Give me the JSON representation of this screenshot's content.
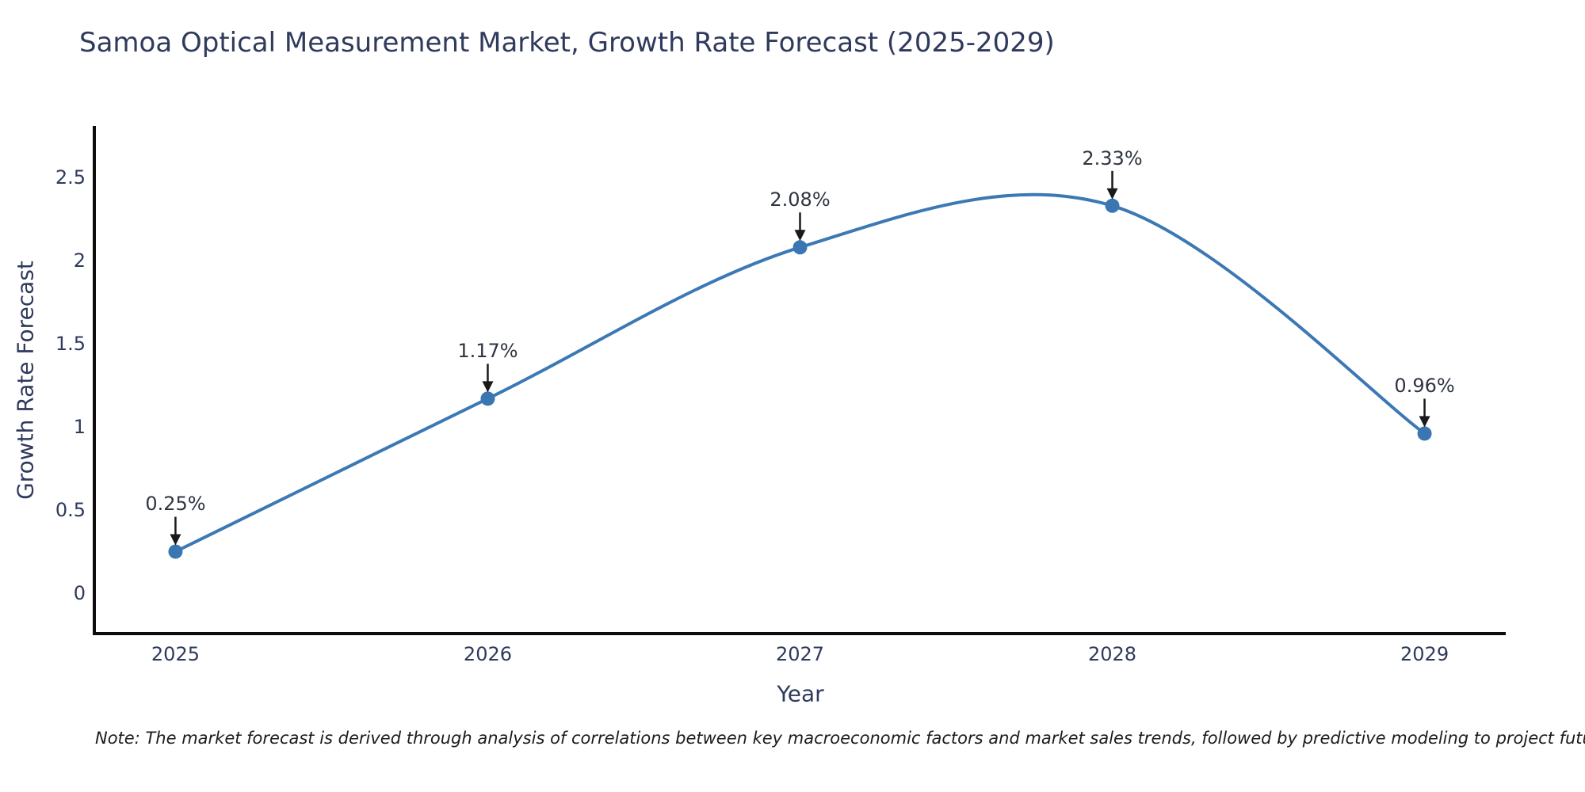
{
  "note": {
    "text": "Note: The market forecast is derived through analysis of correlations between key macroeconomic factors and market sales trends, followed by predictive modeling to project future sales"
  },
  "chart_data": {
    "type": "line",
    "line_shape": "spline",
    "title": "Samoa Optical Measurement Market, Growth Rate Forecast (2025-2029)",
    "xlabel": "Year",
    "ylabel": "Growth Rate Forecast",
    "x": [
      2025,
      2026,
      2027,
      2028,
      2029
    ],
    "xtick_labels": [
      "2025",
      "2026",
      "2027",
      "2028",
      "2029"
    ],
    "series": [
      {
        "name": "Growth Rate Forecast",
        "values": [
          0.25,
          1.17,
          2.08,
          2.33,
          0.96
        ],
        "point_labels": [
          "0.25%",
          "1.17%",
          "2.08%",
          "2.33%",
          "0.96%"
        ]
      }
    ],
    "yticks": [
      0,
      0.5,
      1,
      1.5,
      2,
      2.5
    ],
    "ytick_labels": [
      "0",
      "0.5",
      "1",
      "1.5",
      "2",
      "2.5"
    ],
    "xlim": [
      2024.74,
      2029.26
    ],
    "ylim": [
      -0.243,
      2.81
    ],
    "grid": false,
    "legend": "none",
    "line_width": 4,
    "marker_size": 18,
    "colors": {
      "line": "#3c79b4",
      "marker": "#3a76b2",
      "axis": "#0d0d0d",
      "arrow": "#1a1a1a",
      "text": "#2f3a5c",
      "annotation": "#2e3440",
      "note": "#1c1c1c"
    }
  }
}
